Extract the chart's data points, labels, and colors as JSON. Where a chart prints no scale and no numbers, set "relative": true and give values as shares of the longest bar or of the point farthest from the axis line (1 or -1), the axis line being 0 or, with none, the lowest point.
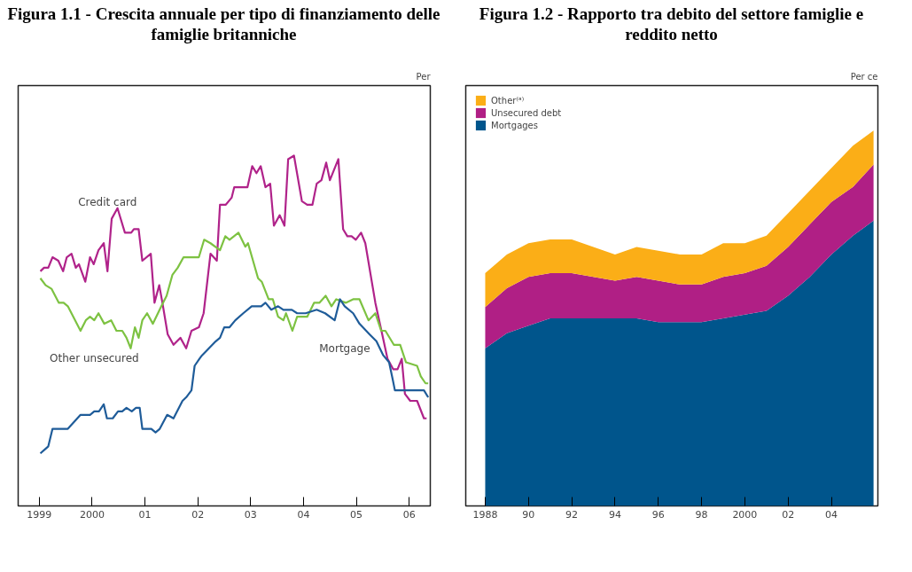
{
  "chart_data": [
    {
      "type": "line",
      "title": "Figura 1.1 - Crescita annuale per tipo di finanziamento delle famiglie britanniche",
      "relative": true,
      "grid": false,
      "legend": false,
      "annotations": [
        "Per"
      ],
      "xlim": [
        1998.6,
        2006.4
      ],
      "xticks": [
        {
          "value": 1999,
          "label": "1999"
        },
        {
          "value": 2000,
          "label": "2000"
        },
        {
          "value": 2001,
          "label": "01"
        },
        {
          "value": 2002,
          "label": "02"
        },
        {
          "value": 2003,
          "label": "03"
        },
        {
          "value": 2004,
          "label": "04"
        },
        {
          "value": 2005,
          "label": "05"
        },
        {
          "value": 2006,
          "label": "06"
        }
      ],
      "series": [
        {
          "name": "Credit card",
          "color": "#b0238a",
          "x": [
            1999.02,
            1999.09,
            1999.17,
            1999.25,
            1999.36,
            1999.45,
            1999.52,
            1999.61,
            1999.69,
            1999.75,
            1999.87,
            1999.96,
            2000.03,
            2000.12,
            2000.22,
            2000.29,
            2000.37,
            2000.48,
            2000.62,
            2000.74,
            2000.79,
            2000.88,
            2000.95,
            2001.11,
            2001.18,
            2001.27,
            2001.33,
            2001.43,
            2001.54,
            2001.67,
            2001.78,
            2001.88,
            2002.02,
            2002.11,
            2002.24,
            2002.36,
            2002.42,
            2002.53,
            2002.64,
            2002.69,
            2002.94,
            2003.03,
            2003.11,
            2003.19,
            2003.28,
            2003.37,
            2003.44,
            2003.55,
            2003.64,
            2003.71,
            2003.82,
            2003.97,
            2004.07,
            2004.17,
            2004.25,
            2004.34,
            2004.43,
            2004.5,
            2004.66,
            2004.75,
            2004.83,
            2004.91,
            2004.99,
            2005.09,
            2005.17,
            2005.36,
            2005.49,
            2005.59,
            2005.7,
            2005.78,
            2005.86,
            2005.92,
            2006.02,
            2006.15,
            2006.28,
            2006.33
          ],
          "values": [
            0.67,
            0.68,
            0.68,
            0.71,
            0.7,
            0.67,
            0.71,
            0.72,
            0.68,
            0.69,
            0.64,
            0.71,
            0.69,
            0.73,
            0.75,
            0.67,
            0.82,
            0.85,
            0.78,
            0.78,
            0.79,
            0.79,
            0.7,
            0.72,
            0.58,
            0.63,
            0.58,
            0.49,
            0.46,
            0.48,
            0.45,
            0.5,
            0.51,
            0.55,
            0.72,
            0.7,
            0.86,
            0.86,
            0.88,
            0.91,
            0.91,
            0.97,
            0.95,
            0.97,
            0.91,
            0.92,
            0.8,
            0.83,
            0.8,
            0.99,
            1.0,
            0.87,
            0.86,
            0.86,
            0.92,
            0.93,
            0.98,
            0.93,
            0.99,
            0.79,
            0.77,
            0.77,
            0.76,
            0.78,
            0.75,
            0.58,
            0.49,
            0.42,
            0.39,
            0.39,
            0.42,
            0.32,
            0.3,
            0.3,
            0.25,
            0.25
          ]
        },
        {
          "name": "Other unsecured",
          "color": "#7dc242",
          "x": [
            1999.02,
            1999.12,
            1999.23,
            1999.37,
            1999.46,
            1999.54,
            1999.78,
            1999.88,
            1999.96,
            2000.04,
            2000.12,
            2000.23,
            2000.36,
            2000.46,
            2000.57,
            2000.65,
            2000.73,
            2000.81,
            2000.88,
            2000.95,
            2001.04,
            2001.15,
            2001.31,
            2001.41,
            2001.52,
            2001.62,
            2001.73,
            2001.85,
            2002.02,
            2002.12,
            2002.24,
            2002.42,
            2002.52,
            2002.6,
            2002.77,
            2002.9,
            2002.95,
            2003.14,
            2003.21,
            2003.34,
            2003.42,
            2003.52,
            2003.62,
            2003.67,
            2003.79,
            2003.88,
            2004.07,
            2004.2,
            2004.3,
            2004.42,
            2004.53,
            2004.62,
            2004.8,
            2004.94,
            2005.06,
            2005.23,
            2005.36,
            2005.47,
            2005.55,
            2005.71,
            2005.83,
            2005.94,
            2006.15,
            2006.22,
            2006.31,
            2006.36
          ],
          "values": [
            0.65,
            0.63,
            0.62,
            0.58,
            0.58,
            0.57,
            0.5,
            0.53,
            0.54,
            0.53,
            0.55,
            0.52,
            0.53,
            0.5,
            0.5,
            0.48,
            0.45,
            0.51,
            0.48,
            0.53,
            0.55,
            0.52,
            0.57,
            0.6,
            0.66,
            0.68,
            0.71,
            0.71,
            0.71,
            0.76,
            0.75,
            0.73,
            0.77,
            0.76,
            0.78,
            0.74,
            0.75,
            0.65,
            0.64,
            0.59,
            0.59,
            0.54,
            0.53,
            0.55,
            0.5,
            0.54,
            0.54,
            0.58,
            0.58,
            0.6,
            0.57,
            0.59,
            0.58,
            0.59,
            0.59,
            0.53,
            0.55,
            0.5,
            0.5,
            0.46,
            0.46,
            0.41,
            0.4,
            0.37,
            0.35,
            0.35
          ]
        },
        {
          "name": "Mortgage",
          "color": "#1f5c99",
          "x": [
            1999.02,
            1999.17,
            1999.25,
            1999.54,
            1999.78,
            1999.96,
            2000.04,
            2000.13,
            2000.22,
            2000.28,
            2000.39,
            2000.49,
            2000.57,
            2000.65,
            2000.75,
            2000.83,
            2000.9,
            2000.95,
            2001.05,
            2001.12,
            2001.2,
            2001.28,
            2001.42,
            2001.54,
            2001.71,
            2001.78,
            2001.88,
            2001.94,
            2002.03,
            2002.08,
            2002.21,
            2002.34,
            2002.42,
            2002.5,
            2002.6,
            2002.71,
            2002.86,
            2003.02,
            2003.2,
            2003.28,
            2003.39,
            2003.52,
            2003.62,
            2003.78,
            2003.88,
            2004.04,
            2004.25,
            2004.41,
            2004.59,
            2004.69,
            2004.78,
            2004.94,
            2005.06,
            2005.25,
            2005.38,
            2005.51,
            2005.62,
            2005.69,
            2005.73,
            2005.85,
            2006.02,
            2006.1,
            2006.23,
            2006.28,
            2006.36
          ],
          "values": [
            0.15,
            0.17,
            0.22,
            0.22,
            0.26,
            0.26,
            0.27,
            0.27,
            0.29,
            0.25,
            0.25,
            0.27,
            0.27,
            0.28,
            0.27,
            0.28,
            0.28,
            0.22,
            0.22,
            0.22,
            0.21,
            0.22,
            0.26,
            0.25,
            0.3,
            0.31,
            0.33,
            0.4,
            0.42,
            0.43,
            0.45,
            0.47,
            0.48,
            0.51,
            0.51,
            0.53,
            0.55,
            0.57,
            0.57,
            0.58,
            0.56,
            0.57,
            0.56,
            0.56,
            0.55,
            0.55,
            0.56,
            0.55,
            0.53,
            0.59,
            0.57,
            0.55,
            0.52,
            0.49,
            0.47,
            0.43,
            0.41,
            0.36,
            0.33,
            0.33,
            0.33,
            0.33,
            0.33,
            0.33,
            0.31
          ]
        }
      ]
    },
    {
      "type": "area",
      "title": "Figura 1.2 - Rapporto tra debito del settore famiglie e reddito netto",
      "relative": true,
      "stacked": true,
      "grid": false,
      "legend": "top left",
      "annotations": [
        "Per ce"
      ],
      "x": [
        1988,
        1989,
        1990,
        1991,
        1992,
        1993,
        1994,
        1995,
        1996,
        1997,
        1998,
        1999,
        2000,
        2001,
        2002,
        2003,
        2004,
        2005,
        2005.95
      ],
      "xlim": [
        1987.1,
        2006.15
      ],
      "xticks": [
        {
          "value": 1988,
          "label": "1988"
        },
        {
          "value": 1990,
          "label": "90"
        },
        {
          "value": 1992,
          "label": "92"
        },
        {
          "value": 1994,
          "label": "94"
        },
        {
          "value": 1996,
          "label": "96"
        },
        {
          "value": 1998,
          "label": "98"
        },
        {
          "value": 2000,
          "label": "2000"
        },
        {
          "value": 2002,
          "label": "02"
        },
        {
          "value": 2004,
          "label": "04"
        }
      ],
      "series": [
        {
          "name": "Mortgages",
          "color": "#00558c",
          "values": [
            0.42,
            0.46,
            0.48,
            0.5,
            0.5,
            0.5,
            0.5,
            0.5,
            0.49,
            0.49,
            0.49,
            0.5,
            0.51,
            0.52,
            0.56,
            0.61,
            0.67,
            0.72,
            0.76
          ]
        },
        {
          "name": "Unsecured debt",
          "color": "#b01f85",
          "values": [
            0.11,
            0.12,
            0.13,
            0.12,
            0.12,
            0.11,
            0.1,
            0.11,
            0.11,
            0.1,
            0.1,
            0.11,
            0.11,
            0.12,
            0.13,
            0.14,
            0.14,
            0.13,
            0.15
          ]
        },
        {
          "name": "Other⁽ᵃ⁾",
          "color": "#fbae17",
          "values": [
            0.09,
            0.09,
            0.09,
            0.09,
            0.09,
            0.08,
            0.07,
            0.08,
            0.08,
            0.08,
            0.08,
            0.09,
            0.08,
            0.08,
            0.09,
            0.09,
            0.09,
            0.11,
            0.09
          ]
        }
      ]
    }
  ]
}
